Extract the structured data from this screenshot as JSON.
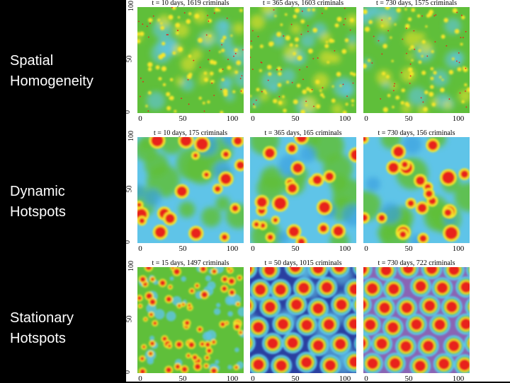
{
  "row_labels": [
    {
      "line1": "Spatial",
      "line2": "Homogeneity"
    },
    {
      "line1": "Dynamic",
      "line2": "Hotspots"
    },
    {
      "line1": "Stationary",
      "line2": "Hotspots"
    }
  ],
  "rows": [
    {
      "type": "homogeneous",
      "panels": [
        {
          "title": "t = 10 days,  1619 criminals"
        },
        {
          "title": "t = 365 days,  1603 criminals"
        },
        {
          "title": "t = 730 days,  1575 criminals"
        }
      ]
    },
    {
      "type": "dynamic",
      "panels": [
        {
          "title": "t = 10 days,   175 criminals"
        },
        {
          "title": "t = 365 days,   165 criminals"
        },
        {
          "title": "t = 730 days,   156 criminals"
        }
      ]
    },
    {
      "type": "stationary",
      "panels": [
        {
          "title": "t = 15 days,   1497 criminals"
        },
        {
          "title": "t = 50 days,   1015 criminals"
        },
        {
          "title": "t = 730 days,   722 criminals"
        }
      ]
    }
  ],
  "x_ticks": [
    "0",
    "50",
    "100"
  ],
  "y_ticks": [
    "0",
    "50",
    "100"
  ],
  "colors": {
    "background": "#000000",
    "label_text": "#ffffff",
    "low": "#2a3fa0",
    "mid_low": "#5fc4e8",
    "mid": "#5fbf3a",
    "mid_high": "#f5e62a",
    "high": "#e8201c",
    "violet": "#8a64b4"
  }
}
